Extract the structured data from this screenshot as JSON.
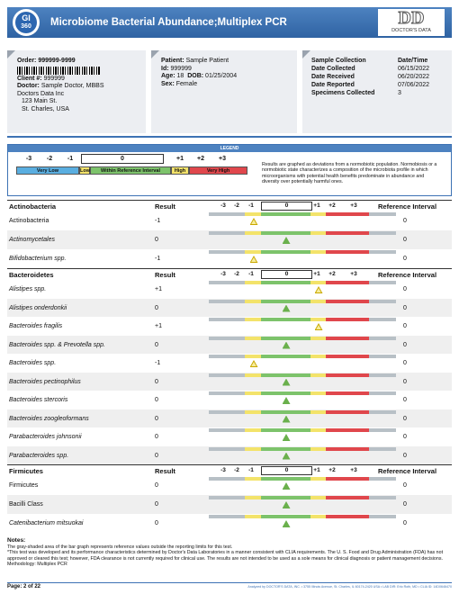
{
  "header": {
    "logo_top": "GI",
    "logo_bottom": "360",
    "title": "Microbiome Bacterial Abundance;Multiplex PCR",
    "brand_mark": "DD",
    "brand": "DOCTOR'S DATA"
  },
  "order": {
    "order_label": "Order:",
    "order": "999999-9999",
    "client_label": "Client #:",
    "client": "999999",
    "doctor_label": "Doctor:",
    "doctor": "Sample Doctor, MBBS",
    "address": [
      "Doctors Data Inc",
      "123 Main St.",
      "St. Charles, USA"
    ]
  },
  "patient": {
    "name_label": "Patient:",
    "name": "Sample Patient",
    "id_label": "Id:",
    "id": "999999",
    "age_label": "Age:",
    "age": "18",
    "dob_label": "DOB:",
    "dob": "01/25/2004",
    "sex_label": "Sex:",
    "sex": "Female"
  },
  "sample": {
    "rows": [
      [
        "Sample Collection",
        "Date/Time"
      ],
      [
        "Date Collected",
        "06/15/2022"
      ],
      [
        "Date Received",
        "06/20/2022"
      ],
      [
        "Date Reported",
        "07/06/2022"
      ],
      [
        "Specimens Collected",
        "3"
      ]
    ]
  },
  "legend": {
    "title": "LEGEND",
    "scale": [
      "-3",
      "-2",
      "-1",
      "0",
      "+1",
      "+2",
      "+3"
    ],
    "bands": [
      "Very Low",
      "Low",
      "Within Reference Interval",
      "High",
      "Very High"
    ],
    "text": "Results are graphed as deviations from a normobiotic population. Normobiosis or a normobiotic state characterizes a composition of the microbiota profile in which microorganisms with potential health benefits predominate in abundance and diversity over potentially harmful ones."
  },
  "sections": [
    {
      "name": "Actinobacteria",
      "result_header": "Result",
      "scale": [
        "-3",
        "-2",
        "-1",
        "0",
        "+1",
        "+2",
        "+3"
      ],
      "ref_header": "Reference Interval",
      "rows": [
        {
          "name": "Actinobacteria",
          "italic": false,
          "result": "-1",
          "ref": "0"
        },
        {
          "name": "Actinomycetales",
          "italic": true,
          "result": "0",
          "ref": "0"
        },
        {
          "name": "Bifidobacterium spp.",
          "italic": true,
          "result": "-1",
          "ref": "0"
        }
      ]
    },
    {
      "name": "Bacteroidetes",
      "result_header": "Result",
      "scale": [
        "-3",
        "-2",
        "-1",
        "0",
        "+1",
        "+2",
        "+3"
      ],
      "ref_header": "Reference Interval",
      "rows": [
        {
          "name": "Alistipes spp.",
          "italic": true,
          "result": "+1",
          "ref": "0"
        },
        {
          "name": "Alistipes onderdonkii",
          "italic": true,
          "result": "0",
          "ref": "0"
        },
        {
          "name": "Bacteroides fragilis",
          "italic": true,
          "result": "+1",
          "ref": "0"
        },
        {
          "name": "Bacteroides spp. & Prevotella spp.",
          "italic": true,
          "result": "0",
          "ref": "0"
        },
        {
          "name": "Bacteroides spp.",
          "italic": true,
          "result": "-1",
          "ref": "0"
        },
        {
          "name": "Bacteroides pectinophilus",
          "italic": true,
          "result": "0",
          "ref": "0"
        },
        {
          "name": "Bacteroides stercoris",
          "italic": true,
          "result": "0",
          "ref": "0"
        },
        {
          "name": "Bacteroides zoogleoformans",
          "italic": true,
          "result": "0",
          "ref": "0"
        },
        {
          "name": "Parabacteroides johnsonii",
          "italic": true,
          "result": "0",
          "ref": "0"
        },
        {
          "name": "Parabacteroides spp.",
          "italic": true,
          "result": "0",
          "ref": "0"
        }
      ]
    },
    {
      "name": "Firmicutes",
      "result_header": "Result",
      "scale": [
        "-3",
        "-2",
        "-1",
        "0",
        "+1",
        "+2",
        "+3"
      ],
      "ref_header": "Reference Interval",
      "rows": [
        {
          "name": "Firmicutes",
          "italic": false,
          "result": "0",
          "ref": "0"
        },
        {
          "name": "Bacilli Class",
          "italic": false,
          "result": "0",
          "ref": "0"
        },
        {
          "name": "Catenibacterium mitsuokai",
          "italic": true,
          "result": "0",
          "ref": "0"
        }
      ]
    }
  ],
  "notes": {
    "title": "Notes:",
    "lines": [
      "The gray-shaded area of the bar graph represents reference values outside the reporting limits for this test.",
      "*This test was developed and its performance characteristics determined by Doctor's Data Laboratories in a manner consistent with CLIA requirements. The U. S. Food and Drug Administration (FDA) has not approved or cleared this test; however, FDA clearance is not currently required for clinical use. The results are not intended to be used as a sole means for clinical diagnosis or patient management decisions.",
      "Methodology: Multiplex PCR"
    ]
  },
  "footer": {
    "page": "Page: 2 of 22",
    "analyzed": "Analyzed by DOCTOR'S DATA, INC. • 3755 Illinois Avenue, St. Charles, IL 60174-2420 USA • LAB DIR: Erlo Roth, MD • CLIA ID: 14D0646470"
  }
}
